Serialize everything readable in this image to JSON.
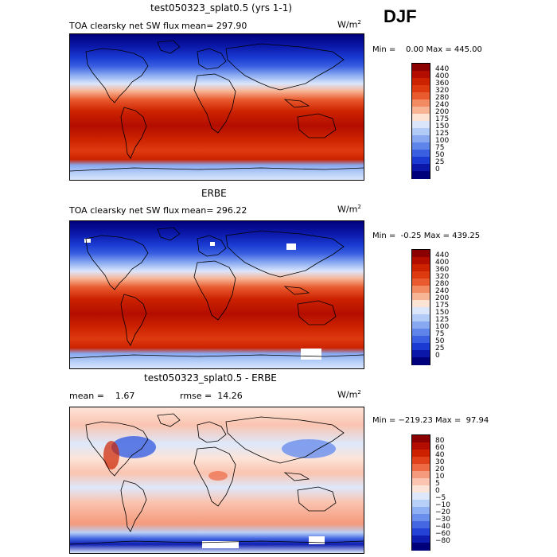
{
  "season": "DJF",
  "chart_data": [
    {
      "type": "heatmap",
      "title": "test050323_splat0.5 (yrs 1-1)",
      "variable": "TOA clearsky net SW flux",
      "mean_text": "mean= 297.90",
      "units": "W/m",
      "units_sup": "2",
      "minmax_text": "Min =    0.00 Max = 445.00",
      "levels": [
        "440",
        "400",
        "360",
        "320",
        "280",
        "240",
        "200",
        "175",
        "150",
        "125",
        "100",
        "75",
        "50",
        "25",
        "0"
      ],
      "colors": [
        "#8b0000",
        "#b30d00",
        "#cc2200",
        "#de3a10",
        "#e95a2e",
        "#f28a62",
        "#f7b596",
        "#fce3d4",
        "#dbe6fb",
        "#b2ccf7",
        "#88a9f1",
        "#5f85ea",
        "#3a5fe0",
        "#1a3ad1",
        "#0a17a8",
        "#00007a"
      ]
    },
    {
      "type": "heatmap",
      "title": "ERBE",
      "variable": "TOA clearsky net SW flux",
      "mean_text": "mean= 296.22",
      "units": "W/m",
      "units_sup": "2",
      "minmax_text": "Min =  -0.25 Max = 439.25",
      "levels": [
        "440",
        "400",
        "360",
        "320",
        "280",
        "240",
        "200",
        "175",
        "150",
        "125",
        "100",
        "75",
        "50",
        "25",
        "0"
      ],
      "colors": [
        "#8b0000",
        "#b30d00",
        "#cc2200",
        "#de3a10",
        "#e95a2e",
        "#f28a62",
        "#f7b596",
        "#fce3d4",
        "#dbe6fb",
        "#b2ccf7",
        "#88a9f1",
        "#5f85ea",
        "#3a5fe0",
        "#1a3ad1",
        "#0a17a8",
        "#00007a"
      ]
    },
    {
      "type": "heatmap",
      "title": "test050323_splat0.5 - ERBE",
      "variable": "",
      "mean_text": "mean =    1.67",
      "rmse_text": "rmse =  14.26",
      "units": "W/m",
      "units_sup": "2",
      "minmax_text": "Min = −219.23 Max =  97.94",
      "levels": [
        "80",
        "60",
        "40",
        "30",
        "20",
        "10",
        "5",
        "0",
        "−5",
        "−10",
        "−20",
        "−30",
        "−40",
        "−60",
        "−80"
      ],
      "colors": [
        "#8b0000",
        "#b30d00",
        "#cc2200",
        "#e0401a",
        "#ee6a44",
        "#f59a7c",
        "#fac4b0",
        "#fde4d8",
        "#dde8fb",
        "#b8d0f7",
        "#8fb0f2",
        "#6a8eec",
        "#4568e2",
        "#2443d6",
        "#0e1db0",
        "#00007a"
      ]
    }
  ]
}
